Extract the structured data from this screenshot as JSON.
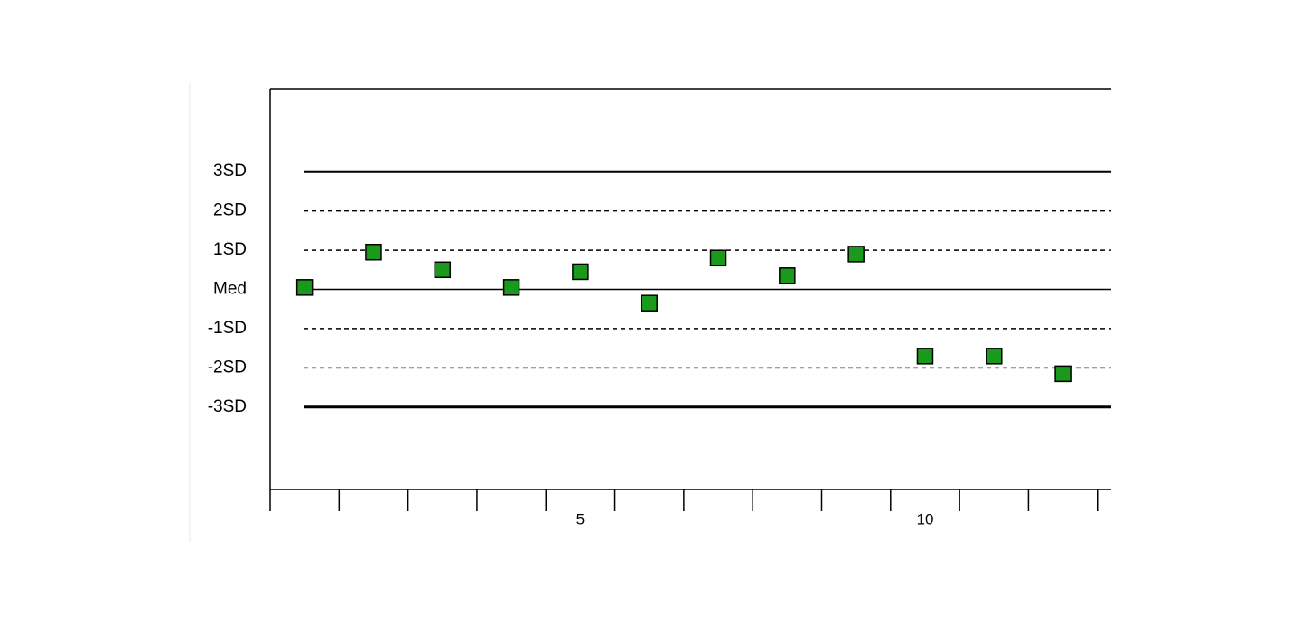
{
  "chart_data": {
    "type": "scatter",
    "title": "",
    "xlabel": "",
    "ylabel": "",
    "xlim": [
      0.5,
      12.7
    ],
    "ylim": [
      -5.1,
      5.1
    ],
    "x_tick_labels": [
      {
        "x": 5,
        "label": "5"
      },
      {
        "x": 10,
        "label": "10"
      }
    ],
    "reference_lines": [
      {
        "label": "3SD",
        "value": 3,
        "style": "solid-bold"
      },
      {
        "label": "2SD",
        "value": 2,
        "style": "dashed"
      },
      {
        "label": "1SD",
        "value": 1,
        "style": "dashed"
      },
      {
        "label": "Med",
        "value": 0,
        "style": "solid"
      },
      {
        "label": "-1SD",
        "value": -1,
        "style": "dashed"
      },
      {
        "label": "-2SD",
        "value": -2,
        "style": "dashed"
      },
      {
        "label": "-3SD",
        "value": -3,
        "style": "solid-bold"
      }
    ],
    "series": [
      {
        "marker": "square",
        "color": "#1a9a1a",
        "points": [
          {
            "x": 1,
            "y": 0.05
          },
          {
            "x": 2,
            "y": 0.95
          },
          {
            "x": 3,
            "y": 0.5
          },
          {
            "x": 4,
            "y": 0.05
          },
          {
            "x": 5,
            "y": 0.45
          },
          {
            "x": 6,
            "y": -0.35
          },
          {
            "x": 7,
            "y": 0.8
          },
          {
            "x": 8,
            "y": 0.35
          },
          {
            "x": 9,
            "y": 0.9
          },
          {
            "x": 10,
            "y": -1.7
          },
          {
            "x": 11,
            "y": -1.7
          },
          {
            "x": 12,
            "y": -2.15
          }
        ]
      }
    ],
    "grid": false,
    "legend": "none"
  }
}
